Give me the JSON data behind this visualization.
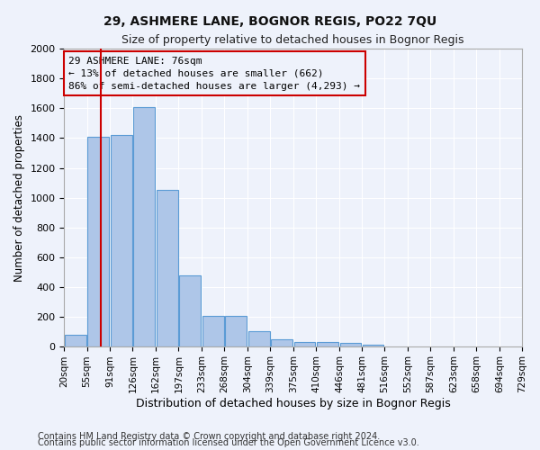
{
  "title": "29, ASHMERE LANE, BOGNOR REGIS, PO22 7QU",
  "subtitle": "Size of property relative to detached houses in Bognor Regis",
  "xlabel": "Distribution of detached houses by size in Bognor Regis",
  "ylabel": "Number of detached properties",
  "bar_values": [
    75,
    1410,
    1420,
    1610,
    1050,
    475,
    205,
    205,
    100,
    45,
    30,
    25,
    20,
    10
  ],
  "bar_left_edges": [
    20,
    55,
    91,
    126,
    162,
    197,
    233,
    268,
    304,
    339,
    375,
    410,
    446,
    481
  ],
  "bin_width": 35,
  "xtick_labels": [
    "20sqm",
    "55sqm",
    "91sqm",
    "126sqm",
    "162sqm",
    "197sqm",
    "233sqm",
    "268sqm",
    "304sqm",
    "339sqm",
    "375sqm",
    "410sqm",
    "446sqm",
    "481sqm",
    "516sqm",
    "552sqm",
    "587sqm",
    "623sqm",
    "658sqm",
    "694sqm",
    "729sqm"
  ],
  "xtick_positions": [
    20,
    55,
    91,
    126,
    162,
    197,
    233,
    268,
    304,
    339,
    375,
    410,
    446,
    481,
    516,
    552,
    587,
    623,
    658,
    694,
    729
  ],
  "ylim": [
    0,
    2000
  ],
  "yticks": [
    0,
    200,
    400,
    600,
    800,
    1000,
    1200,
    1400,
    1600,
    1800,
    2000
  ],
  "bar_color": "#aec6e8",
  "bar_edge_color": "#5b9bd5",
  "vline_x": 76,
  "vline_color": "#cc0000",
  "annotation_text": "29 ASHMERE LANE: 76sqm\n← 13% of detached houses are smaller (662)\n86% of semi-detached houses are larger (4,293) →",
  "annotation_box_color": "#cc0000",
  "background_color": "#eef2fb",
  "grid_color": "#ffffff",
  "footer_line1": "Contains HM Land Registry data © Crown copyright and database right 2024.",
  "footer_line2": "Contains public sector information licensed under the Open Government Licence v3.0."
}
